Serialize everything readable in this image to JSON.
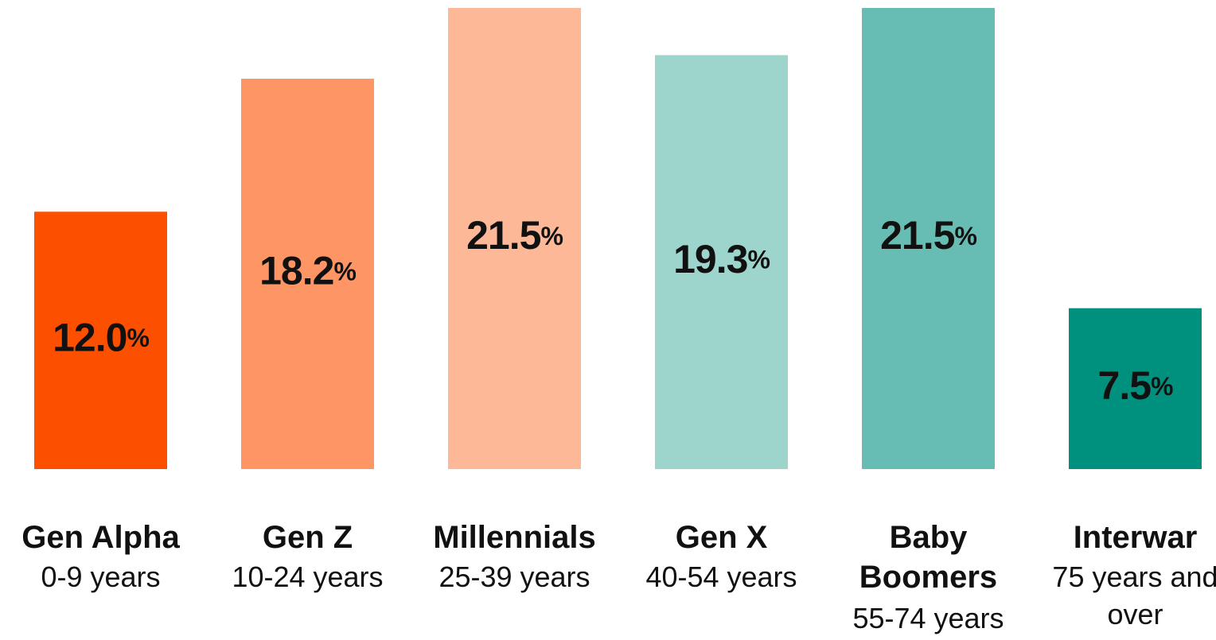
{
  "chart_data": {
    "type": "bar",
    "categories": [
      "Gen Alpha",
      "Gen Z",
      "Millennials",
      "Gen X",
      "Baby Boomers",
      "Interwar"
    ],
    "age_ranges": [
      "0-9 years",
      "10-24 years",
      "25-39 years",
      "40-54 years",
      "55-74 years",
      "75 years and over"
    ],
    "values": [
      12.0,
      18.2,
      21.5,
      19.3,
      21.5,
      7.5
    ],
    "value_labels": [
      "12.0%",
      "18.2%",
      "21.5%",
      "19.3%",
      "21.5%",
      "7.5%"
    ],
    "colors": [
      "#fc5000",
      "#fd9565",
      "#fdb898",
      "#9dd5cd",
      "#67bdb3",
      "#00917e"
    ]
  }
}
